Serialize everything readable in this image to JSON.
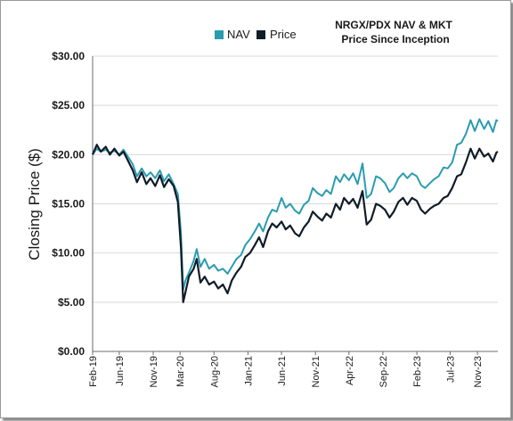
{
  "chart_data": {
    "type": "line",
    "title": [
      "NRGX/PDX NAV & MKT",
      "Price Since Inception"
    ],
    "ylabel": "Closing Price ($)",
    "xlabel": "",
    "ylim": [
      0,
      30
    ],
    "yticks": [
      0,
      5,
      10,
      15,
      20,
      25,
      30
    ],
    "ytick_labels": [
      "$0.00",
      "$5.00",
      "$10.00",
      "$15.00",
      "$20.00",
      "$25.00",
      "$30.00"
    ],
    "x_tick_labels": [
      "Feb-19",
      "Jun-19",
      "Nov-19",
      "Mar-20",
      "Aug-20",
      "Jan-21",
      "Jun-21",
      "Nov-21",
      "Apr-22",
      "Sep-22",
      "Feb-23",
      "Jul-23",
      "Nov-23"
    ],
    "x_tick_dates": [
      "2019-02",
      "2019-06",
      "2019-11",
      "2020-03",
      "2020-08",
      "2021-01",
      "2021-06",
      "2021-11",
      "2022-04",
      "2022-09",
      "2023-02",
      "2023-07",
      "2023-11"
    ],
    "x_range": [
      "2019-02",
      "2024-02"
    ],
    "grid": "horizontal",
    "legend_position": "top",
    "series": [
      {
        "name": "NAV",
        "color": "#2a9cb0",
        "points": [
          [
            "2019-02-01",
            20.0
          ],
          [
            "2019-02-20",
            20.6
          ],
          [
            "2019-03-10",
            20.3
          ],
          [
            "2019-04-01",
            20.5
          ],
          [
            "2019-04-20",
            20.2
          ],
          [
            "2019-05-10",
            20.4
          ],
          [
            "2019-06-01",
            20.0
          ],
          [
            "2019-06-20",
            20.5
          ],
          [
            "2019-07-10",
            19.8
          ],
          [
            "2019-08-01",
            19.0
          ],
          [
            "2019-08-20",
            17.8
          ],
          [
            "2019-09-10",
            18.6
          ],
          [
            "2019-10-01",
            17.8
          ],
          [
            "2019-10-20",
            18.2
          ],
          [
            "2019-11-10",
            17.6
          ],
          [
            "2019-12-01",
            18.4
          ],
          [
            "2019-12-20",
            17.3
          ],
          [
            "2020-01-10",
            18.0
          ],
          [
            "2020-02-01",
            17.0
          ],
          [
            "2020-02-20",
            16.0
          ],
          [
            "2020-03-05",
            12.0
          ],
          [
            "2020-03-15",
            6.3
          ],
          [
            "2020-03-25",
            7.2
          ],
          [
            "2020-04-10",
            8.0
          ],
          [
            "2020-05-01",
            9.2
          ],
          [
            "2020-05-15",
            10.4
          ],
          [
            "2020-06-01",
            8.6
          ],
          [
            "2020-06-20",
            9.4
          ],
          [
            "2020-07-10",
            8.4
          ],
          [
            "2020-08-01",
            8.8
          ],
          [
            "2020-08-20",
            8.2
          ],
          [
            "2020-09-10",
            8.4
          ],
          [
            "2020-10-01",
            7.9
          ],
          [
            "2020-10-20",
            8.6
          ],
          [
            "2020-11-10",
            9.4
          ],
          [
            "2020-12-01",
            9.8
          ],
          [
            "2020-12-20",
            10.8
          ],
          [
            "2021-01-10",
            11.4
          ],
          [
            "2021-02-01",
            12.2
          ],
          [
            "2021-02-20",
            13.0
          ],
          [
            "2021-03-10",
            12.2
          ],
          [
            "2021-04-01",
            13.6
          ],
          [
            "2021-04-20",
            14.4
          ],
          [
            "2021-05-10",
            14.2
          ],
          [
            "2021-06-01",
            15.6
          ],
          [
            "2021-06-20",
            14.6
          ],
          [
            "2021-07-10",
            15.0
          ],
          [
            "2021-08-01",
            14.3
          ],
          [
            "2021-08-20",
            14.0
          ],
          [
            "2021-09-10",
            14.9
          ],
          [
            "2021-10-01",
            15.3
          ],
          [
            "2021-10-20",
            16.6
          ],
          [
            "2021-11-10",
            16.1
          ],
          [
            "2021-12-01",
            15.8
          ],
          [
            "2021-12-20",
            16.4
          ],
          [
            "2022-01-10",
            16.0
          ],
          [
            "2022-02-01",
            17.8
          ],
          [
            "2022-02-20",
            17.2
          ],
          [
            "2022-03-10",
            18.0
          ],
          [
            "2022-04-01",
            17.4
          ],
          [
            "2022-04-20",
            18.1
          ],
          [
            "2022-05-10",
            17.0
          ],
          [
            "2022-06-01",
            19.1
          ],
          [
            "2022-06-20",
            15.6
          ],
          [
            "2022-07-10",
            16.0
          ],
          [
            "2022-08-01",
            17.8
          ],
          [
            "2022-08-20",
            17.6
          ],
          [
            "2022-09-10",
            17.1
          ],
          [
            "2022-10-01",
            16.2
          ],
          [
            "2022-10-20",
            16.6
          ],
          [
            "2022-11-10",
            17.6
          ],
          [
            "2022-12-01",
            18.1
          ],
          [
            "2022-12-20",
            17.6
          ],
          [
            "2023-01-10",
            18.1
          ],
          [
            "2023-02-01",
            17.8
          ],
          [
            "2023-02-20",
            16.9
          ],
          [
            "2023-03-10",
            16.6
          ],
          [
            "2023-04-01",
            17.1
          ],
          [
            "2023-04-20",
            17.5
          ],
          [
            "2023-05-10",
            17.8
          ],
          [
            "2023-06-01",
            18.7
          ],
          [
            "2023-06-20",
            18.6
          ],
          [
            "2023-07-10",
            19.2
          ],
          [
            "2023-08-01",
            21.0
          ],
          [
            "2023-08-20",
            21.2
          ],
          [
            "2023-09-10",
            22.1
          ],
          [
            "2023-10-01",
            23.5
          ],
          [
            "2023-10-20",
            22.4
          ],
          [
            "2023-11-10",
            23.6
          ],
          [
            "2023-12-01",
            22.6
          ],
          [
            "2023-12-20",
            23.4
          ],
          [
            "2024-01-10",
            22.3
          ],
          [
            "2024-01-25",
            23.5
          ],
          [
            "2024-02-01",
            23.4
          ]
        ]
      },
      {
        "name": "Price",
        "color": "#101c28",
        "points": [
          [
            "2019-02-01",
            20.0
          ],
          [
            "2019-02-20",
            21.0
          ],
          [
            "2019-03-10",
            20.3
          ],
          [
            "2019-04-01",
            20.8
          ],
          [
            "2019-04-20",
            20.0
          ],
          [
            "2019-05-10",
            20.6
          ],
          [
            "2019-06-01",
            19.9
          ],
          [
            "2019-06-20",
            20.3
          ],
          [
            "2019-07-10",
            19.4
          ],
          [
            "2019-08-01",
            18.4
          ],
          [
            "2019-08-20",
            17.2
          ],
          [
            "2019-09-10",
            18.2
          ],
          [
            "2019-10-01",
            17.0
          ],
          [
            "2019-10-20",
            17.6
          ],
          [
            "2019-11-10",
            16.8
          ],
          [
            "2019-12-01",
            17.9
          ],
          [
            "2019-12-20",
            16.7
          ],
          [
            "2020-01-10",
            17.5
          ],
          [
            "2020-02-01",
            16.8
          ],
          [
            "2020-02-20",
            15.2
          ],
          [
            "2020-03-05",
            10.5
          ],
          [
            "2020-03-15",
            5.0
          ],
          [
            "2020-03-25",
            6.0
          ],
          [
            "2020-04-10",
            7.6
          ],
          [
            "2020-05-01",
            8.4
          ],
          [
            "2020-05-15",
            9.4
          ],
          [
            "2020-06-01",
            7.0
          ],
          [
            "2020-06-20",
            7.6
          ],
          [
            "2020-07-10",
            6.8
          ],
          [
            "2020-08-01",
            7.1
          ],
          [
            "2020-08-20",
            6.4
          ],
          [
            "2020-09-10",
            6.8
          ],
          [
            "2020-10-01",
            5.9
          ],
          [
            "2020-10-20",
            7.2
          ],
          [
            "2020-11-10",
            8.0
          ],
          [
            "2020-12-01",
            8.6
          ],
          [
            "2020-12-20",
            9.6
          ],
          [
            "2021-01-10",
            10.0
          ],
          [
            "2021-02-01",
            10.8
          ],
          [
            "2021-02-20",
            11.6
          ],
          [
            "2021-03-10",
            10.6
          ],
          [
            "2021-04-01",
            12.2
          ],
          [
            "2021-04-20",
            13.0
          ],
          [
            "2021-05-10",
            12.6
          ],
          [
            "2021-06-01",
            13.2
          ],
          [
            "2021-06-20",
            12.4
          ],
          [
            "2021-07-10",
            12.8
          ],
          [
            "2021-08-01",
            12.0
          ],
          [
            "2021-08-20",
            11.7
          ],
          [
            "2021-09-10",
            12.6
          ],
          [
            "2021-10-01",
            13.2
          ],
          [
            "2021-10-20",
            14.2
          ],
          [
            "2021-11-10",
            13.7
          ],
          [
            "2021-12-01",
            13.3
          ],
          [
            "2021-12-20",
            14.0
          ],
          [
            "2022-01-10",
            13.6
          ],
          [
            "2022-02-01",
            15.0
          ],
          [
            "2022-02-20",
            14.4
          ],
          [
            "2022-03-10",
            15.6
          ],
          [
            "2022-04-01",
            15.0
          ],
          [
            "2022-04-20",
            15.5
          ],
          [
            "2022-05-10",
            14.6
          ],
          [
            "2022-06-01",
            16.3
          ],
          [
            "2022-06-20",
            12.9
          ],
          [
            "2022-07-10",
            13.4
          ],
          [
            "2022-08-01",
            15.0
          ],
          [
            "2022-08-20",
            14.8
          ],
          [
            "2022-09-10",
            14.4
          ],
          [
            "2022-10-01",
            13.6
          ],
          [
            "2022-10-20",
            14.2
          ],
          [
            "2022-11-10",
            15.2
          ],
          [
            "2022-12-01",
            15.6
          ],
          [
            "2022-12-20",
            14.9
          ],
          [
            "2023-01-10",
            15.6
          ],
          [
            "2023-02-01",
            15.3
          ],
          [
            "2023-02-20",
            14.4
          ],
          [
            "2023-03-10",
            14.0
          ],
          [
            "2023-04-01",
            14.5
          ],
          [
            "2023-04-20",
            14.8
          ],
          [
            "2023-05-10",
            15.0
          ],
          [
            "2023-06-01",
            15.6
          ],
          [
            "2023-06-20",
            15.8
          ],
          [
            "2023-07-10",
            16.6
          ],
          [
            "2023-08-01",
            17.8
          ],
          [
            "2023-08-20",
            18.0
          ],
          [
            "2023-09-10",
            19.2
          ],
          [
            "2023-10-01",
            20.6
          ],
          [
            "2023-10-20",
            19.6
          ],
          [
            "2023-11-10",
            20.6
          ],
          [
            "2023-12-01",
            19.8
          ],
          [
            "2023-12-20",
            20.1
          ],
          [
            "2024-01-10",
            19.3
          ],
          [
            "2024-01-25",
            20.2
          ],
          [
            "2024-02-01",
            20.3
          ]
        ]
      }
    ]
  }
}
